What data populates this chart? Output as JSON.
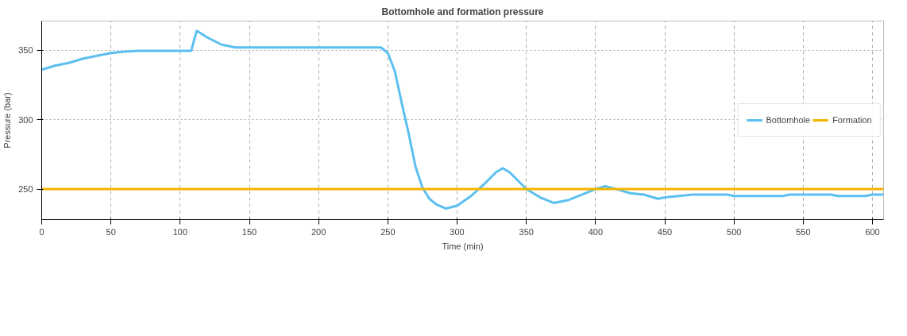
{
  "chart_data": {
    "type": "line",
    "title": "Bottomhole and formation pressure",
    "xlabel": "Time (min)",
    "ylabel": "Pressure (bar)",
    "xlim": [
      0,
      608
    ],
    "ylim": [
      228,
      371
    ],
    "xticks": [
      0,
      50,
      100,
      150,
      200,
      250,
      300,
      350,
      400,
      450,
      500,
      550,
      600
    ],
    "yticks": [
      250,
      300,
      350
    ],
    "grid": true,
    "legend": "right",
    "marker": "none",
    "line_style": "solid",
    "series": [
      {
        "name": "Bottomhole",
        "color": "#5bc0f0",
        "x": [
          0,
          10,
          20,
          30,
          40,
          50,
          60,
          70,
          108,
          110,
          112,
          120,
          130,
          140,
          150,
          245,
          250,
          255,
          260,
          265,
          270,
          275,
          280,
          285,
          292,
          300,
          310,
          320,
          328,
          333,
          338,
          345,
          350,
          360,
          370,
          380,
          390,
          400,
          407,
          415,
          425,
          435,
          445,
          450,
          460,
          470,
          495,
          500,
          535,
          540,
          570,
          575,
          595,
          600,
          608
        ],
        "values": [
          336,
          339,
          341,
          344,
          346,
          348,
          349,
          349.5,
          349.5,
          357,
          364,
          359,
          354,
          352,
          352,
          352,
          348,
          335,
          312,
          290,
          266,
          251,
          243,
          239,
          236,
          238,
          245,
          254,
          262,
          265,
          262,
          255,
          250,
          244,
          240,
          242,
          246,
          250,
          252,
          250,
          247,
          246,
          243,
          244,
          245,
          246,
          246,
          245,
          245,
          246,
          246,
          245,
          245,
          246,
          246
        ]
      },
      {
        "name": "Formation",
        "color": "#f5b400",
        "x": [
          0,
          608
        ],
        "values": [
          250,
          250
        ]
      }
    ]
  }
}
